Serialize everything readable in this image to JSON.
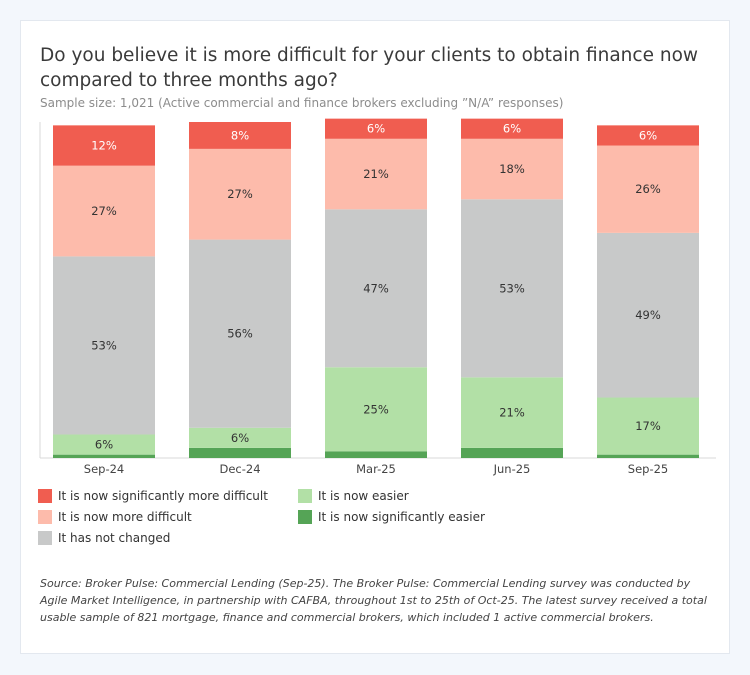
{
  "title": "Do you believe it is more difficult for your clients to obtain finance now compared to three months ago?",
  "subtitle": "Sample size: 1,021 (Active commercial and finance brokers  excluding ”N/A” responses)",
  "footnote": "Source: Broker Pulse: Commercial Lending (Sep-25). The Broker Pulse: Commercial Lending survey was conducted by Agile Market Intelligence, in partnership with CAFBA, throughout 1st to 25th of Oct-25. The latest survey received a total usable sample of 821 mortgage, finance and commercial brokers, which included 1 active commercial brokers.",
  "chart_data": {
    "type": "bar",
    "stacked": true,
    "categories": [
      "Sep-24",
      "Dec-24",
      "Mar-25",
      "Jun-25",
      "Sep-25"
    ],
    "series": [
      {
        "name": "It has not changed",
        "color": "#c8c9c9",
        "values": [
          53,
          56,
          47,
          53,
          49
        ],
        "labels": [
          "53%",
          "56%",
          "47%",
          "53%",
          "49%"
        ]
      },
      {
        "name": "It is now easier",
        "color": "#b2e0a6",
        "values": [
          6,
          6,
          25,
          21,
          17
        ],
        "labels": [
          "6%",
          "6%",
          "25%",
          "21%",
          "17%"
        ]
      },
      {
        "name": "It is now significantly easier",
        "color": "#55a456",
        "values": [
          1,
          3,
          2,
          3,
          1
        ],
        "labels": [
          "",
          "",
          "",
          "",
          ""
        ]
      },
      {
        "name": "It is now more difficult",
        "color": "#fdbbab",
        "values": [
          27,
          27,
          21,
          18,
          26
        ],
        "labels": [
          "27%",
          "27%",
          "21%",
          "18%",
          "26%"
        ]
      },
      {
        "name": "It is now significantly more difficult",
        "color": "#f05d50",
        "values": [
          12,
          8,
          6,
          6,
          6
        ],
        "labels": [
          "12%",
          "8%",
          "6%",
          "6%",
          "6%"
        ]
      }
    ],
    "stack_order_bottom_to_top": [
      "It is now significantly easier",
      "It is now easier",
      "It has not changed",
      "It is now more difficult",
      "It is now significantly more difficult"
    ],
    "legend": [
      {
        "label": "It is now significantly more difficult",
        "color": "#f05d50"
      },
      {
        "label": "It is now more difficult",
        "color": "#fdbbab"
      },
      {
        "label": "It has not changed",
        "color": "#c8c9c9"
      },
      {
        "label": "It is now easier",
        "color": "#b2e0a6"
      },
      {
        "label": "It is now significantly easier",
        "color": "#55a456"
      }
    ],
    "ylim": [
      0,
      100
    ],
    "xlabel": "",
    "ylabel": ""
  }
}
